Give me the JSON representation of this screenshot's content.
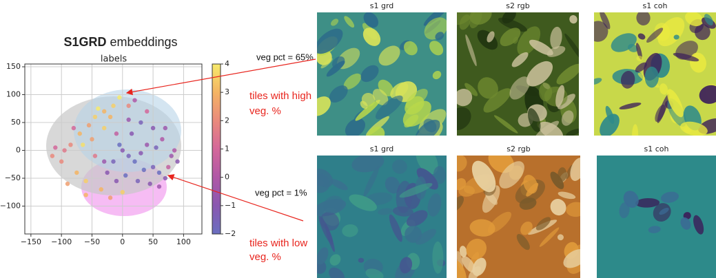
{
  "chart_data": {
    "type": "scatter",
    "title_bold": "S1GRD",
    "title": "embeddings",
    "subtitle": "labels",
    "x": [
      -5,
      -15,
      -30,
      -45,
      -55,
      -70,
      -85,
      -95,
      -110,
      -100,
      -75,
      -90,
      -60,
      -40,
      -20,
      10,
      -65,
      -80,
      -50,
      -30,
      -10,
      -45,
      -35,
      -20,
      0,
      -115,
      -60,
      0,
      10,
      20,
      30,
      40,
      50,
      60,
      70,
      80,
      65,
      50,
      30,
      15,
      -5,
      -15,
      -25,
      5,
      25,
      45,
      60,
      75,
      85,
      70,
      40,
      20,
      -10,
      35,
      55,
      10,
      -30,
      90
    ],
    "y": [
      95,
      80,
      70,
      60,
      45,
      30,
      10,
      0,
      5,
      -20,
      -40,
      -60,
      -55,
      75,
      60,
      80,
      10,
      40,
      20,
      40,
      30,
      -10,
      -70,
      -85,
      -75,
      -10,
      -80,
      0,
      -10,
      -20,
      -5,
      10,
      -30,
      -40,
      -50,
      -10,
      20,
      40,
      50,
      30,
      10,
      -20,
      -40,
      -45,
      -55,
      -60,
      -65,
      -30,
      0,
      40,
      70,
      90,
      -55,
      -35,
      5,
      55,
      -20,
      -20
    ],
    "values": [
      4,
      3.5,
      3,
      3.5,
      2.5,
      3,
      2,
      1.5,
      1,
      2,
      3,
      2.5,
      3.5,
      4,
      3,
      2,
      3.8,
      1,
      2.5,
      3.5,
      0.5,
      1.5,
      3,
      2.5,
      3.5,
      2,
      3,
      -1,
      -1.5,
      -2,
      -1,
      -0.5,
      -1.5,
      -2,
      -1,
      -0.5,
      0,
      -1,
      -1.5,
      -1,
      -2,
      -1.5,
      -1,
      -2,
      -1.5,
      -1,
      -0.5,
      0.5,
      0,
      -0.5,
      1,
      0,
      -1,
      -2,
      -1.5,
      -0.5,
      -0.5,
      -1
    ],
    "xlim": [
      -160,
      130
    ],
    "ylim": [
      -150,
      155
    ],
    "xticks": [
      {
        "value": -150,
        "label": "−150"
      },
      {
        "value": -100,
        "label": "−100"
      },
      {
        "value": -50,
        "label": "−50"
      },
      0,
      50,
      100
    ],
    "yticks": [
      {
        "value": -100,
        "label": "−100"
      },
      {
        "value": -50,
        "label": "−50"
      },
      0,
      50,
      100,
      150
    ],
    "colorbar": {
      "lim": [
        -2,
        4
      ],
      "ticks": [
        {
          "value": -2,
          "label": "−2"
        },
        {
          "value": -1,
          "label": "−1"
        },
        0,
        1,
        2,
        3,
        4
      ],
      "colors": [
        "#6a6fc0",
        "#8a58b0",
        "#b058a6",
        "#d4679a",
        "#ea8a7c",
        "#f4b463",
        "#f7ea6c"
      ]
    },
    "grid": true
  },
  "annotations": [
    {
      "text": "veg pct = 65%"
    },
    {
      "lines": [
        "tiles with high",
        "veg. %"
      ]
    },
    {
      "text": "veg pct = 1%"
    },
    {
      "lines": [
        "tiles with low",
        "veg. %"
      ]
    }
  ],
  "tiles": {
    "row1": [
      "s1 grd",
      "s2 rgb",
      "s1 coh"
    ],
    "row2": [
      "s1 grd",
      "s2 rgb",
      "s1 coh"
    ]
  }
}
